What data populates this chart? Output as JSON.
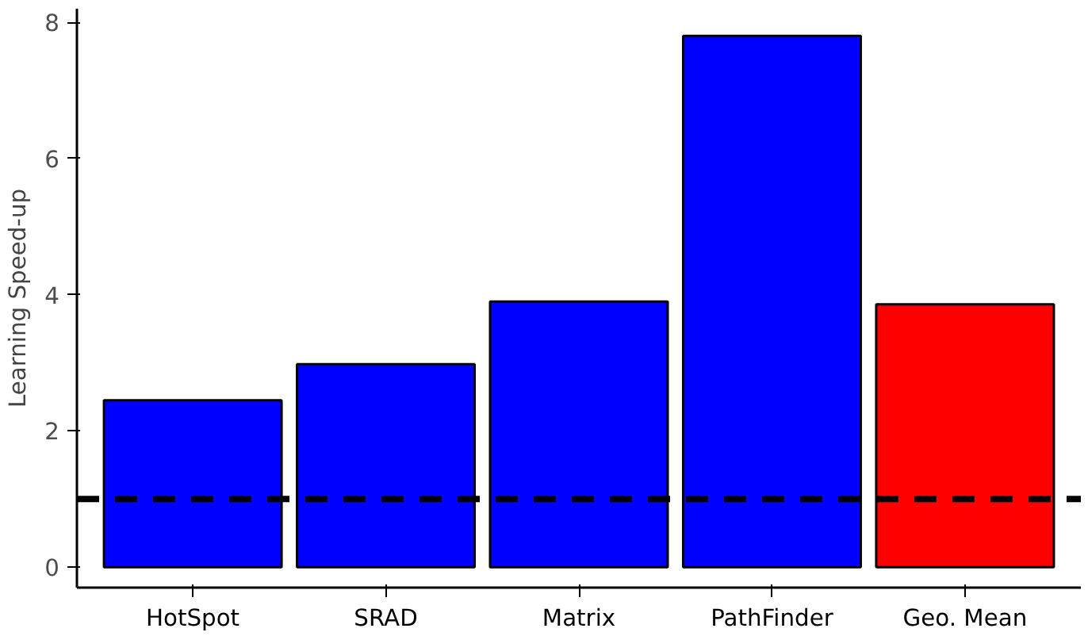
{
  "chart_data": {
    "type": "bar",
    "ylabel": "Learning Speed-up",
    "categories": [
      "HotSpot",
      "SRAD",
      "Matrix",
      "PathFinder",
      "Geo. Mean"
    ],
    "values": [
      2.45,
      2.98,
      3.9,
      7.8,
      3.86
    ],
    "colors": [
      "#0000ff",
      "#0000ff",
      "#0000ff",
      "#0000ff",
      "#ff0000"
    ],
    "ylim": [
      -0.3,
      8.2
    ],
    "yticks": [
      0,
      2,
      4,
      6,
      8
    ],
    "grid": false,
    "ref_lines": [
      {
        "axis": "y",
        "value": 1,
        "color": "#000000",
        "line_style": "dashed"
      }
    ]
  }
}
